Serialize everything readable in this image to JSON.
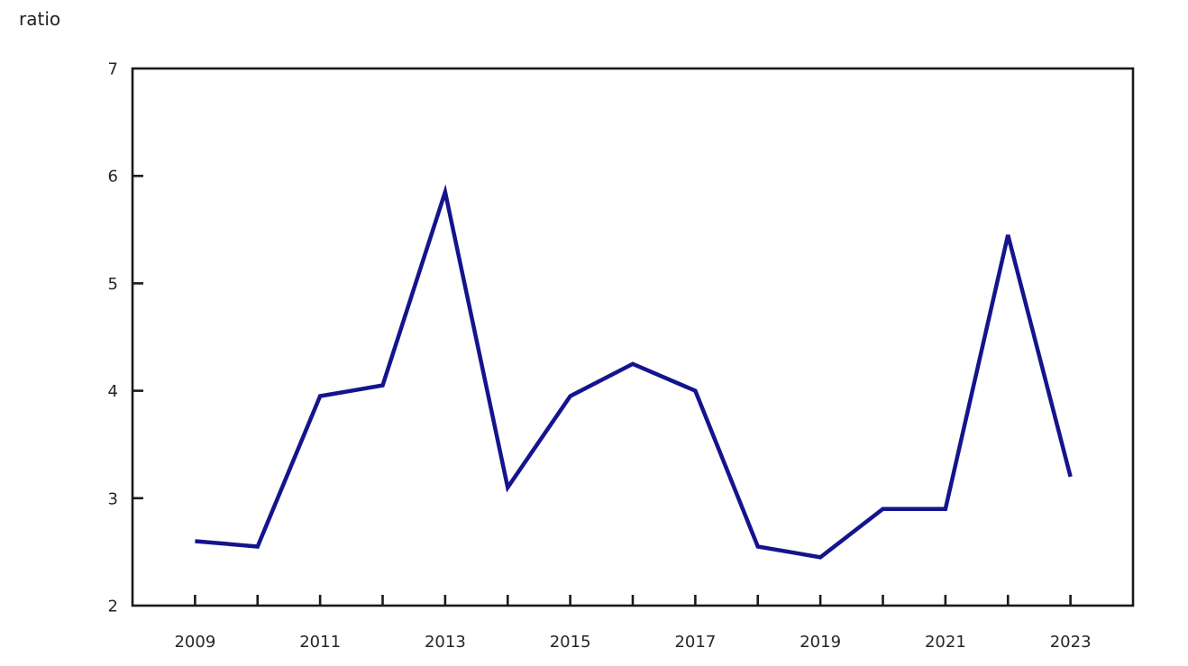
{
  "page": {
    "background": "#ffffff"
  },
  "chart_data": {
    "type": "line",
    "title": "",
    "unit_label": "ratio",
    "xlabel": "",
    "ylabel": "ratio",
    "x": [
      2009,
      2010,
      2011,
      2012,
      2013,
      2014,
      2015,
      2016,
      2017,
      2018,
      2019,
      2020,
      2021,
      2022,
      2023
    ],
    "series": [
      {
        "name": "ratio",
        "color": "#14148c",
        "values": [
          2.6,
          2.55,
          3.95,
          4.05,
          5.85,
          3.1,
          3.95,
          4.25,
          4.0,
          2.55,
          2.45,
          2.9,
          2.9,
          5.45,
          3.2
        ]
      }
    ],
    "ylim": [
      2,
      7
    ],
    "yticks": [
      2,
      3,
      4,
      5,
      6,
      7
    ],
    "xtick_label_years": [
      2009,
      2011,
      2013,
      2015,
      2017,
      2019,
      2021,
      2023
    ],
    "grid": false,
    "legend": "none",
    "axis_color": "#1a1a1a",
    "plot_border": "box"
  }
}
